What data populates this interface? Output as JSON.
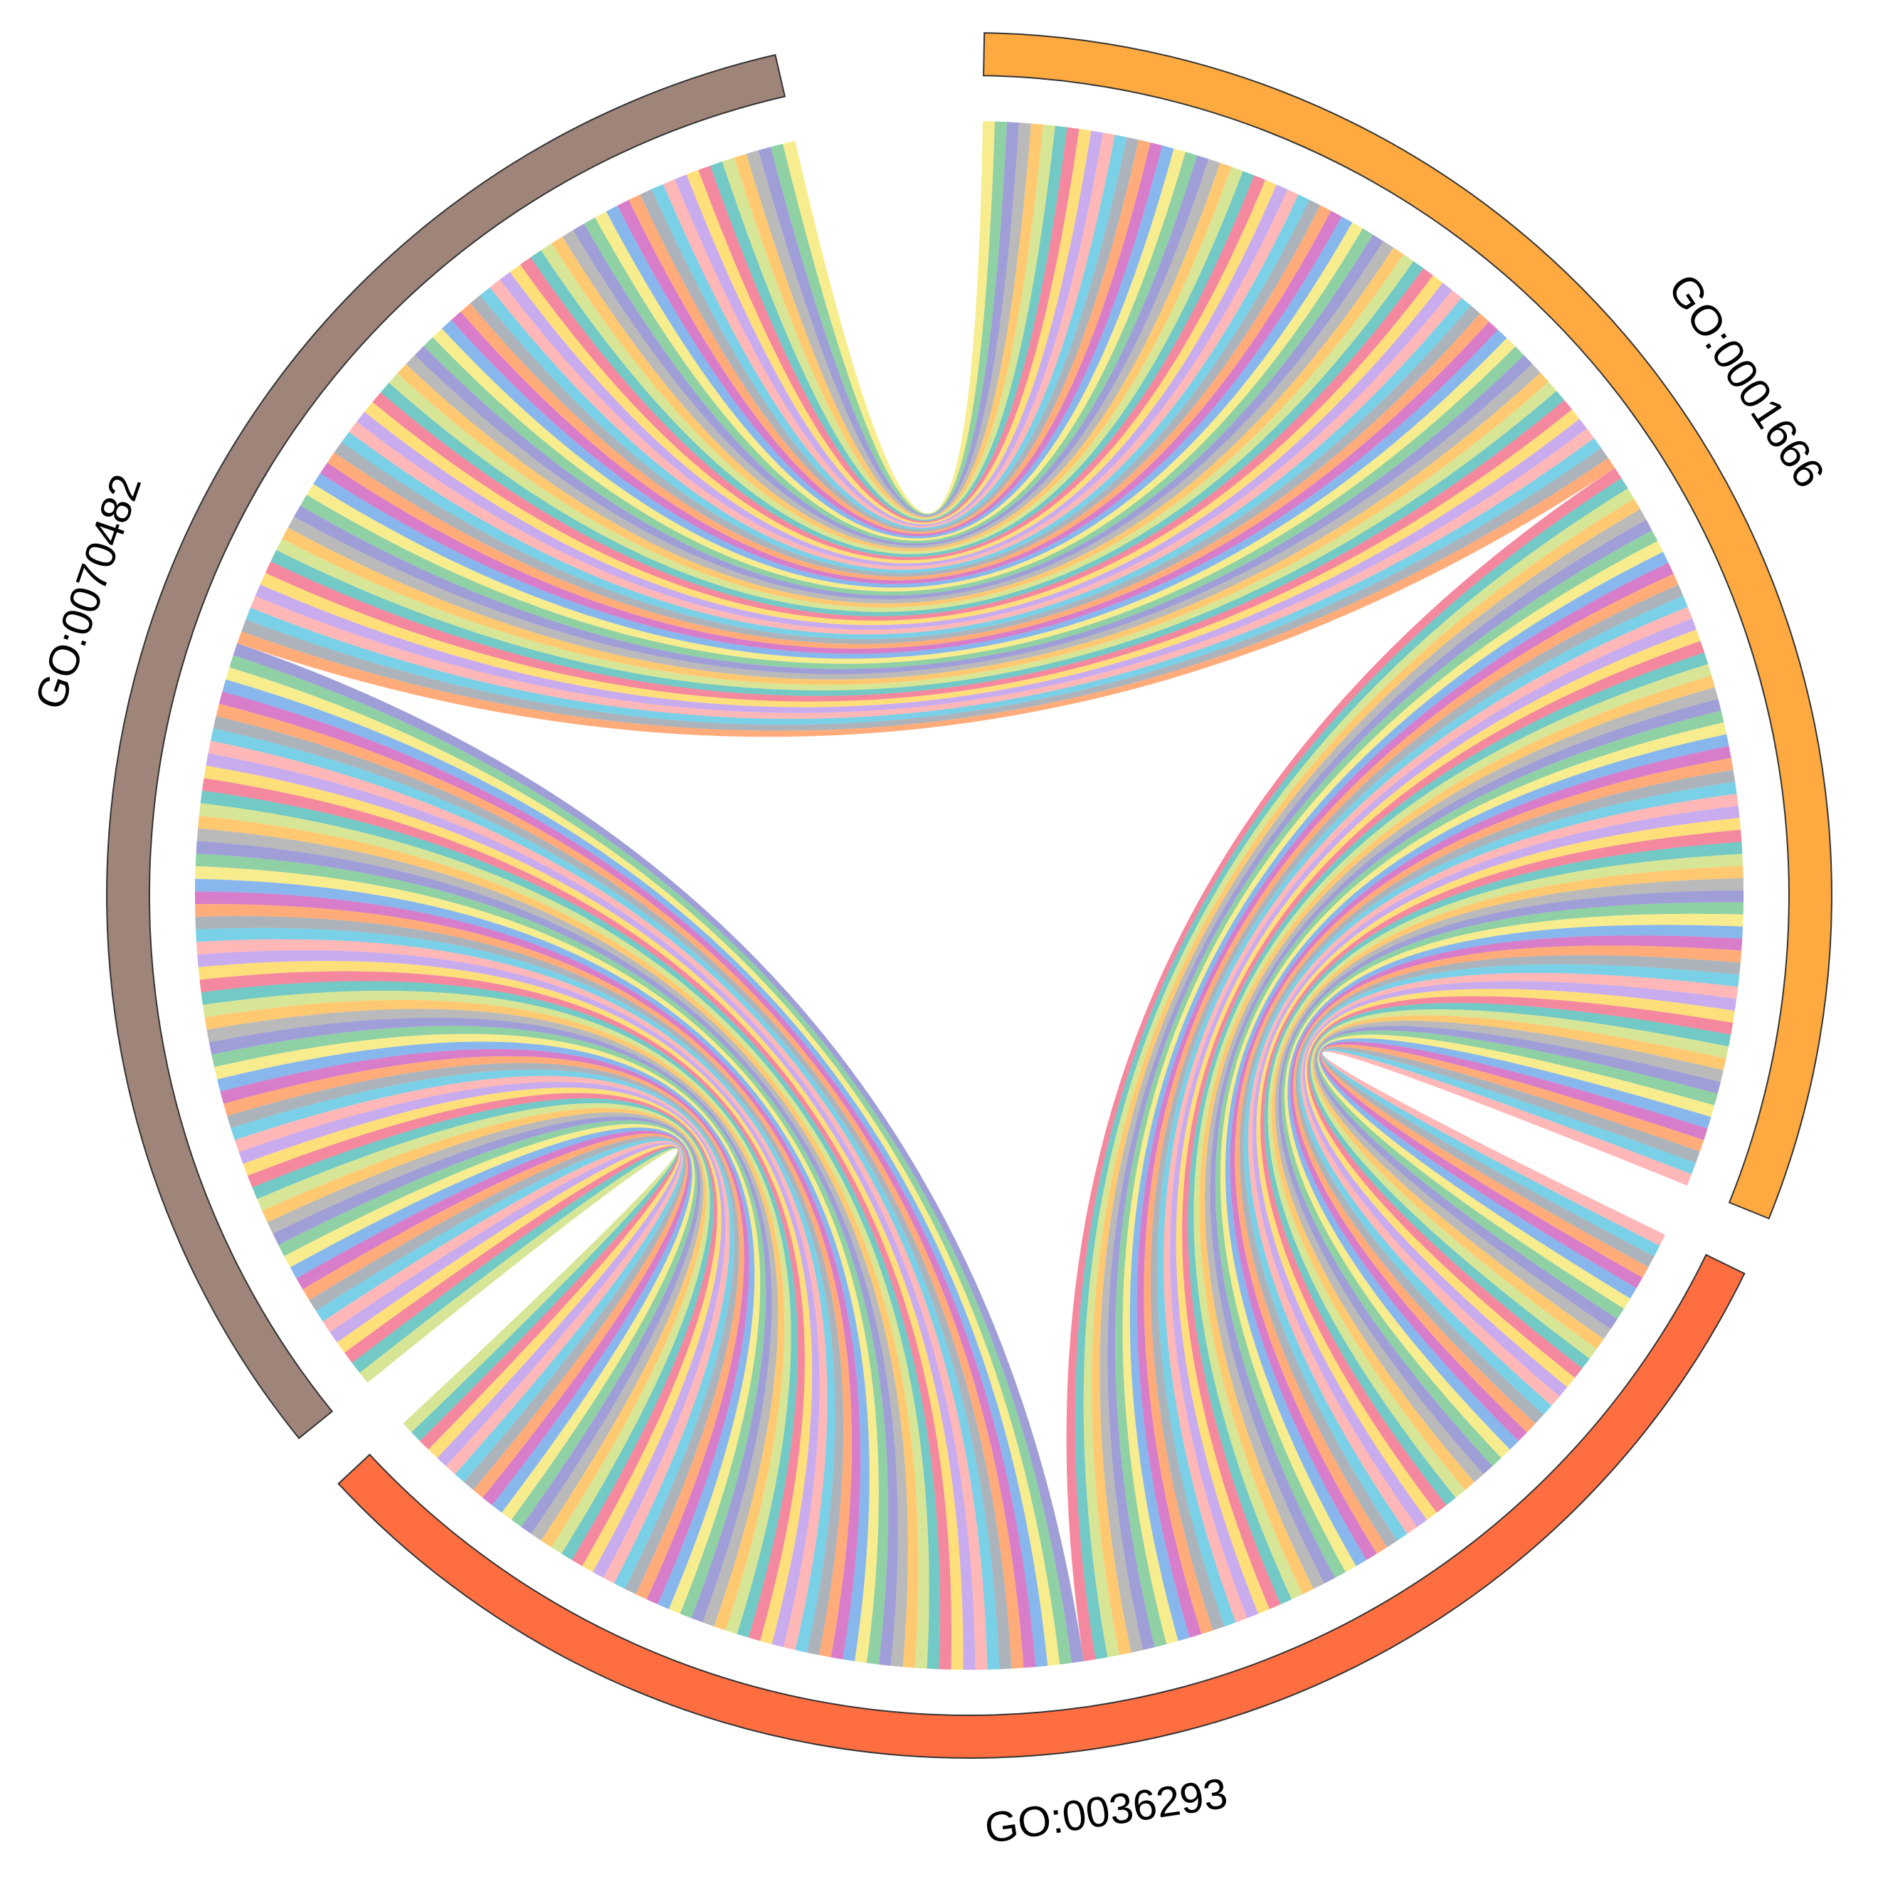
{
  "chart_data": {
    "type": "chord",
    "title": "",
    "sectors": [
      {
        "label": "GO:0001666",
        "color": "#FFAA40",
        "span_deg": 111
      },
      {
        "label": "GO:0036293",
        "color": "#FF6E40",
        "span_deg": 111
      },
      {
        "label": "GO:0070482",
        "color": "#9E8479",
        "span_deg": 116
      }
    ],
    "links_per_pair": 62,
    "link_palette": [
      "#F05A78",
      "#3CB4AF",
      "#C8DC6E",
      "#FFB43C",
      "#A0A0A0",
      "#7B78C8",
      "#64BE82",
      "#F4E664",
      "#5A9BE6",
      "#C84BB4",
      "#FF8C46",
      "#8C96A0",
      "#46BEDC",
      "#FF9B9B",
      "#B48CE6",
      "#FFD246"
    ]
  }
}
